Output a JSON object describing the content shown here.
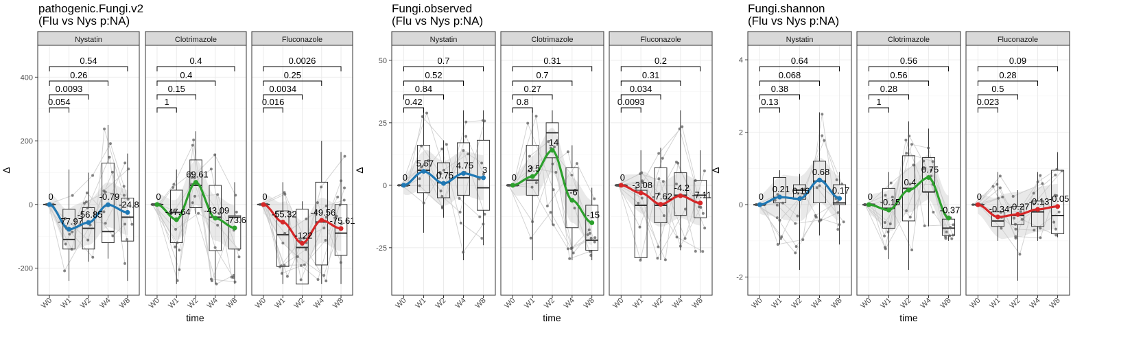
{
  "chart_data": [
    {
      "type": "box",
      "title_lines": [
        "pathogenic.Fungi.v2",
        " (Flu vs Nys p:NA)"
      ],
      "xlabel": "time",
      "ylabel": "Δ",
      "ylim": [
        -285,
        500
      ],
      "yticks": [
        -200,
        0,
        200,
        400
      ],
      "x_categories": [
        "W0",
        "W1",
        "W2",
        "W4",
        "W8"
      ],
      "grid": true,
      "facets": [
        {
          "name": "Nystatin",
          "color": "#1f78b4",
          "boxes": [
            [
              0,
              0,
              0,
              0,
              0
            ],
            [
              -240,
              -140,
              -110,
              -15,
              110
            ],
            [
              -180,
              -140,
              -75,
              -10,
              100
            ],
            [
              -170,
              -120,
              -85,
              130,
              250
            ],
            [
              -240,
              -115,
              -40,
              20,
              160
            ]
          ],
          "means": [
            0,
            -77.97,
            -56.85,
            -0.79,
            -24.8
          ],
          "mean_labels": [
            "0",
            "-77.97",
            "-56.85",
            "-0.79",
            "-24.8"
          ],
          "brackets": [
            {
              "to": "W1",
              "p": "0.054"
            },
            {
              "to": "W2",
              "p": "0.0093"
            },
            {
              "to": "W4",
              "p": "0.26"
            },
            {
              "to": "W8",
              "p": "0.54"
            }
          ]
        },
        {
          "name": "Clotrimazole",
          "color": "#2ca02c",
          "boxes": [
            [
              0,
              0,
              0,
              0,
              0
            ],
            [
              -250,
              -120,
              -25,
              45,
              110
            ],
            [
              -30,
              -10,
              60,
              140,
              230
            ],
            [
              -250,
              -145,
              -40,
              60,
              160
            ],
            [
              -250,
              -140,
              -40,
              -35,
              70
            ]
          ],
          "means": [
            0,
            -47.64,
            69.61,
            -43.09,
            -73.6
          ],
          "mean_labels": [
            "0",
            "-47.64",
            "69.61",
            "-43.09",
            "-73.6"
          ],
          "brackets": [
            {
              "to": "W1",
              "p": "1"
            },
            {
              "to": "W2",
              "p": "0.15"
            },
            {
              "to": "W4",
              "p": "0.4"
            },
            {
              "to": "W8",
              "p": "0.4"
            }
          ]
        },
        {
          "name": "Fluconazole",
          "color": "#d62728",
          "boxes": [
            [
              0,
              0,
              0,
              0,
              0
            ],
            [
              -250,
              -195,
              -95,
              -20,
              70
            ],
            [
              -250,
              -250,
              -135,
              -15,
              10
            ],
            [
              -250,
              -190,
              -55,
              70,
              200
            ],
            [
              -250,
              -160,
              -90,
              0,
              165
            ]
          ],
          "means": [
            0,
            -55.32,
            -122,
            -49.56,
            -75.61
          ],
          "mean_labels": [
            "0",
            "-55.32",
            "-122",
            "-49.56",
            "-75.61"
          ],
          "brackets": [
            {
              "to": "W1",
              "p": "0.016"
            },
            {
              "to": "W2",
              "p": "0.0034"
            },
            {
              "to": "W4",
              "p": "0.25"
            },
            {
              "to": "W8",
              "p": "0.0026"
            }
          ]
        }
      ]
    },
    {
      "type": "box",
      "title_lines": [
        "Fungi.observed",
        " (Flu vs Nys p:NA)"
      ],
      "xlabel": "time",
      "ylabel": "Δ",
      "ylim": [
        -44,
        56
      ],
      "yticks": [
        -25,
        0,
        25,
        50
      ],
      "x_categories": [
        "W0",
        "W1",
        "W2",
        "W4",
        "W8"
      ],
      "grid": true,
      "facets": [
        {
          "name": "Nystatin",
          "color": "#1f78b4",
          "boxes": [
            [
              0,
              0,
              0,
              0,
              0
            ],
            [
              -19,
              -3,
              6,
              16,
              30
            ],
            [
              -13,
              -5,
              1,
              9,
              18
            ],
            [
              -30,
              -4,
              3,
              17,
              30
            ],
            [
              -24,
              -10,
              -1,
              18,
              30
            ]
          ],
          "means": [
            0,
            5.57,
            0.75,
            4.75,
            3
          ],
          "mean_labels": [
            "0",
            "5.57",
            "0.75",
            "4.75",
            "3"
          ],
          "brackets": [
            {
              "to": "W1",
              "p": "0.42"
            },
            {
              "to": "W2",
              "p": "0.84"
            },
            {
              "to": "W4",
              "p": "0.52"
            },
            {
              "to": "W8",
              "p": "0.7"
            }
          ]
        },
        {
          "name": "Clotrimazole",
          "color": "#2ca02c",
          "boxes": [
            [
              0,
              0,
              0,
              0,
              0
            ],
            [
              -30,
              -4,
              2,
              16,
              30
            ],
            [
              -16,
              11,
              21,
              25,
              30
            ],
            [
              -30,
              -17,
              -2,
              7,
              16
            ],
            [
              -30,
              -26,
              -22,
              -8,
              -1
            ]
          ],
          "means": [
            0,
            3.5,
            14,
            -6,
            -15
          ],
          "mean_labels": [
            "0",
            "3.5",
            "14",
            "-6",
            "-15"
          ],
          "brackets": [
            {
              "to": "W1",
              "p": "0.8"
            },
            {
              "to": "W2",
              "p": "0.27"
            },
            {
              "to": "W4",
              "p": "0.7"
            },
            {
              "to": "W8",
              "p": "0.31"
            }
          ]
        },
        {
          "name": "Fluconazole",
          "color": "#d62728",
          "boxes": [
            [
              0,
              0,
              0,
              0,
              0
            ],
            [
              -30,
              -29,
              -8,
              -2,
              14
            ],
            [
              -30,
              -15,
              -8,
              7,
              15
            ],
            [
              -26,
              -12,
              -4,
              5,
              30
            ],
            [
              -27,
              -13,
              -4,
              2,
              14
            ]
          ],
          "means": [
            0,
            -3.08,
            -7.62,
            -4.2,
            -7.11
          ],
          "mean_labels": [
            "0",
            "-3.08",
            "-7.62",
            "-4.2",
            "-7.11"
          ],
          "brackets": [
            {
              "to": "W1",
              "p": "0.0093"
            },
            {
              "to": "W2",
              "p": "0.034"
            },
            {
              "to": "W4",
              "p": "0.31"
            },
            {
              "to": "W8",
              "p": "0.2"
            }
          ]
        }
      ]
    },
    {
      "type": "box",
      "title_lines": [
        "Fungi.shannon",
        " (Flu vs Nys p:NA)"
      ],
      "xlabel": "time",
      "ylabel": "Δ",
      "ylim": [
        -2.5,
        4.4
      ],
      "yticks": [
        -2,
        0,
        2,
        4
      ],
      "x_categories": [
        "W0",
        "W1",
        "W2",
        "W4",
        "W8"
      ],
      "grid": true,
      "facets": [
        {
          "name": "Nystatin",
          "color": "#1f78b4",
          "boxes": [
            [
              0,
              0,
              0,
              0,
              0
            ],
            [
              -1.1,
              0.05,
              0.2,
              0.75,
              0.95
            ],
            [
              -1.8,
              0.15,
              0.4,
              0.55,
              0.85
            ],
            [
              -0.85,
              0.05,
              0.65,
              1.2,
              2.55
            ],
            [
              -1.1,
              0,
              0.05,
              0.55,
              0.9
            ]
          ],
          "means": [
            0,
            0.21,
            0.16,
            0.68,
            0.17
          ],
          "mean_labels": [
            "0",
            "0.21",
            "0.16",
            "0.68",
            "0.17"
          ],
          "brackets": [
            {
              "to": "W1",
              "p": "0.13"
            },
            {
              "to": "W2",
              "p": "0.38"
            },
            {
              "to": "W4",
              "p": "0.068"
            },
            {
              "to": "W8",
              "p": "0.64"
            }
          ]
        },
        {
          "name": "Clotrimazole",
          "color": "#2ca02c",
          "boxes": [
            [
              0,
              0,
              0,
              0,
              0
            ],
            [
              -1.5,
              -0.65,
              -0.1,
              0.45,
              0.9
            ],
            [
              -1.8,
              -0.45,
              0.45,
              1.35,
              2.3
            ],
            [
              -0.6,
              0.35,
              0.35,
              1.3,
              2.1
            ],
            [
              -1.0,
              -0.85,
              -0.65,
              -0.4,
              -0.3
            ]
          ],
          "means": [
            0,
            -0.15,
            0.4,
            0.75,
            -0.37
          ],
          "mean_labels": [
            "0",
            "-0.15",
            "0.4",
            "0.75",
            "-0.37"
          ],
          "brackets": [
            {
              "to": "W1",
              "p": "1"
            },
            {
              "to": "W2",
              "p": "0.28"
            },
            {
              "to": "W4",
              "p": "0.56"
            },
            {
              "to": "W8",
              "p": "0.56"
            }
          ]
        },
        {
          "name": "Fluconazole",
          "color": "#d62728",
          "boxes": [
            [
              0,
              0,
              0,
              0,
              0
            ],
            [
              -1.0,
              -0.6,
              -0.45,
              -0.2,
              0.9
            ],
            [
              -2.1,
              -0.55,
              -0.3,
              -0.05,
              0.4
            ],
            [
              -1.0,
              -0.6,
              -0.2,
              0.1,
              0.9
            ],
            [
              -0.9,
              -0.8,
              -0.3,
              0.95,
              1.45
            ]
          ],
          "means": [
            0,
            -0.34,
            -0.27,
            -0.13,
            -0.05
          ],
          "mean_labels": [
            "0",
            "-0.34",
            "-0.27",
            "-0.13",
            "-0.05"
          ],
          "brackets": [
            {
              "to": "W1",
              "p": "0.023"
            },
            {
              "to": "W2",
              "p": "0.5"
            },
            {
              "to": "W4",
              "p": "0.28"
            },
            {
              "to": "W8",
              "p": "0.09"
            }
          ]
        }
      ]
    }
  ]
}
